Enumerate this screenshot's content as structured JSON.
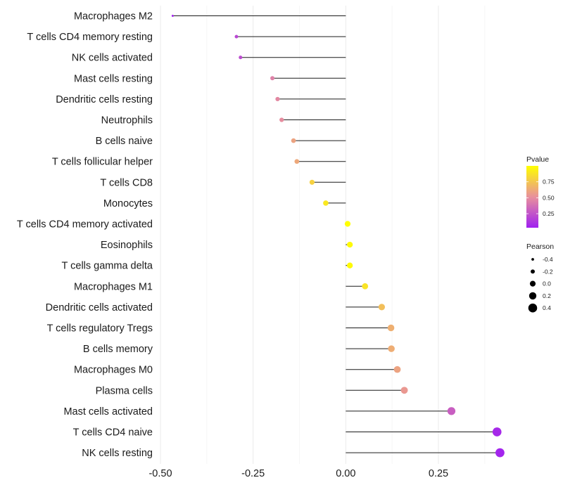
{
  "chart_data": {
    "type": "lollipop",
    "x_ticks": [
      -0.5,
      -0.25,
      0.0,
      0.25
    ],
    "x_tick_labels": [
      "-0.50",
      "-0.25",
      "0.00",
      "0.25"
    ],
    "xlim": [
      -0.5,
      0.42
    ],
    "categories": [
      "Macrophages M2",
      "T cells CD4 memory resting",
      "NK cells activated",
      "Mast cells resting",
      "Dendritic cells resting",
      "Neutrophils",
      "B cells naive",
      "T cells follicular helper",
      "T cells CD8",
      "Monocytes",
      "T cells CD4 memory activated",
      "Eosinophils",
      "T cells gamma delta",
      "Macrophages M1",
      "Dendritic cells activated",
      "T cells regulatory  Tregs ",
      "B cells memory",
      "Macrophages M0",
      "Plasma cells",
      "Mast cells activated",
      "T cells CD4 naive",
      "NK cells resting"
    ],
    "pearson": [
      -0.467,
      -0.295,
      -0.284,
      -0.198,
      -0.184,
      -0.173,
      -0.141,
      -0.132,
      -0.091,
      -0.054,
      0.005,
      0.011,
      0.011,
      0.052,
      0.097,
      0.122,
      0.123,
      0.139,
      0.158,
      0.285,
      0.408,
      0.416
    ],
    "pvalue": [
      0.05,
      0.2,
      0.22,
      0.45,
      0.48,
      0.5,
      0.6,
      0.62,
      0.8,
      0.9,
      1.0,
      0.98,
      0.98,
      0.88,
      0.72,
      0.65,
      0.64,
      0.6,
      0.55,
      0.3,
      0.07,
      0.05
    ],
    "legend": {
      "pvalue_title": "Pvalue",
      "pvalue_ticks": [
        0.25,
        0.5,
        0.75
      ],
      "pvalue_tick_labels": [
        "0.25",
        "0.50",
        "0.75"
      ],
      "pvalue_range": [
        0.03,
        1.0
      ],
      "pearson_title": "Pearson",
      "pearson_values": [
        -0.4,
        -0.2,
        0.0,
        0.2,
        0.4
      ],
      "pearson_labels": [
        "-0.4",
        "-0.2",
        "0.0",
        "0.2",
        "0.4"
      ]
    },
    "colors": {
      "low": "#a020f0",
      "mid": "#e8909c",
      "high": "#ffff00",
      "grid": "#ebebeb",
      "segment": "#1a1a1a"
    }
  }
}
